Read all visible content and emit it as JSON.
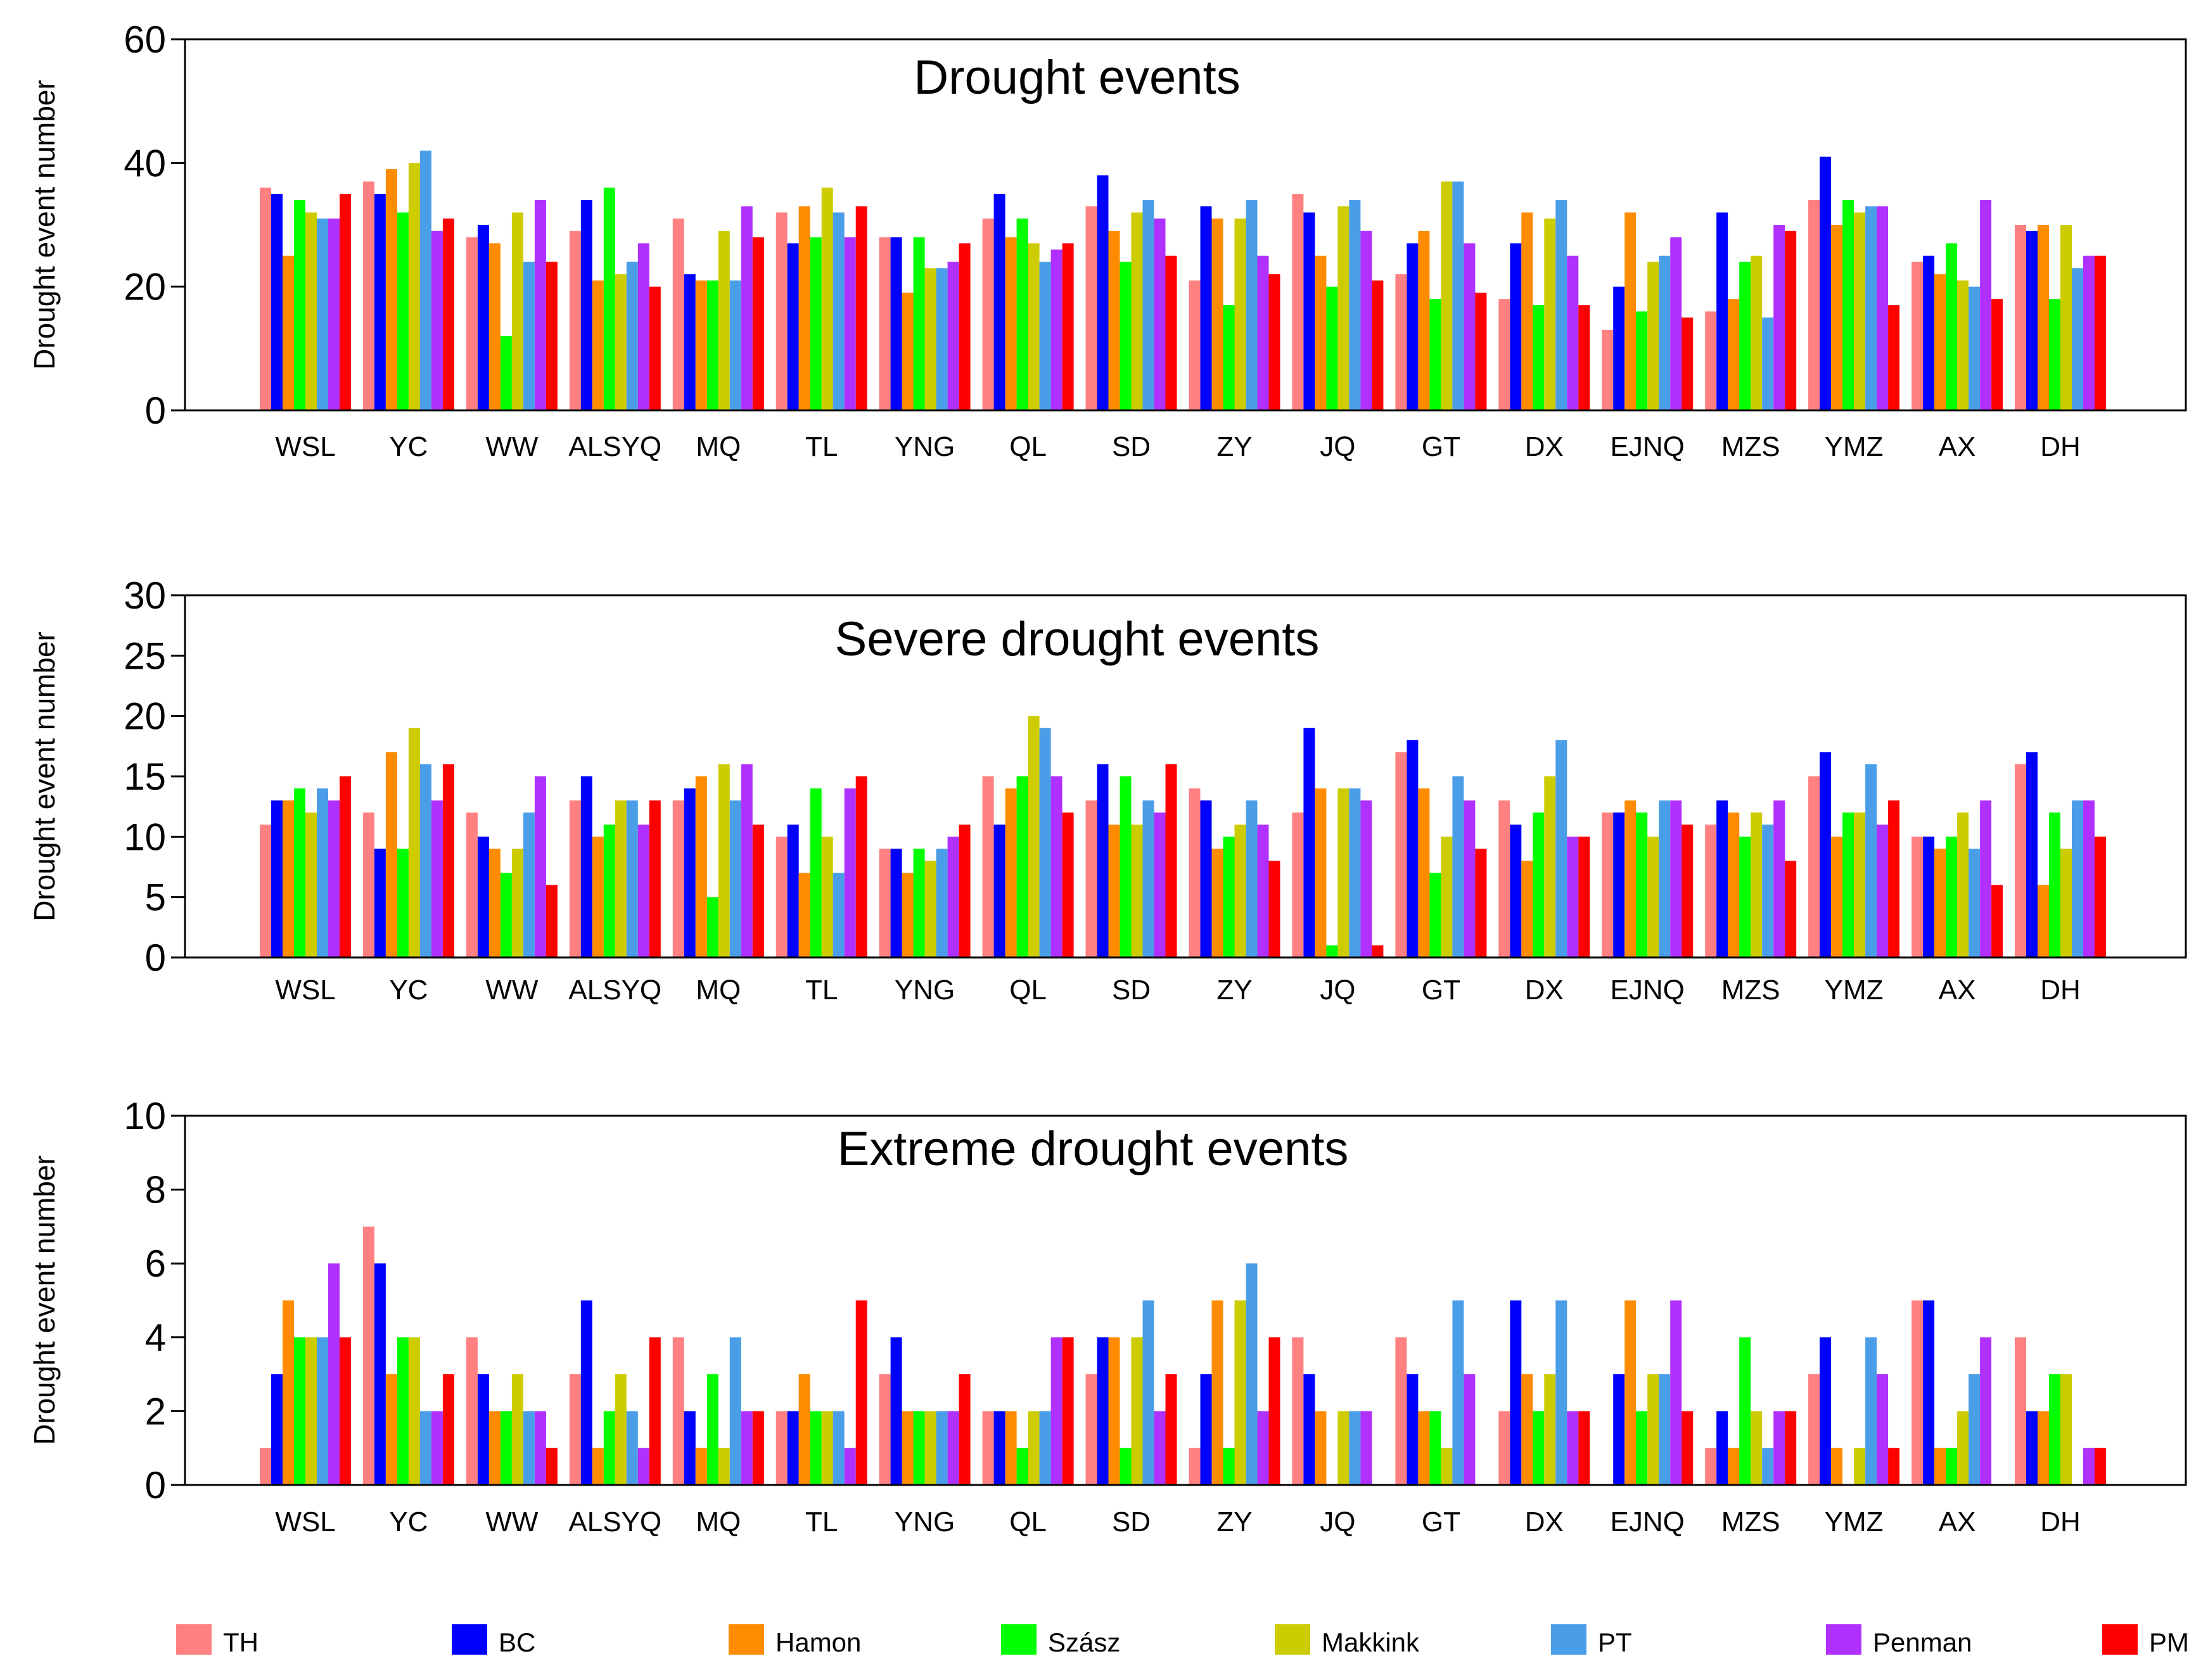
{
  "chart_data": [
    {
      "type": "bar",
      "title": "Drought events",
      "xlabel": "",
      "ylabel": "Drought event number",
      "ylim": [
        0,
        60
      ],
      "yticks": [
        0,
        20,
        40,
        60
      ],
      "categories": [
        "WSL",
        "YC",
        "WW",
        "ALSYQ",
        "MQ",
        "TL",
        "YNG",
        "QL",
        "SD",
        "ZY",
        "JQ",
        "GT",
        "DX",
        "EJNQ",
        "MZS",
        "YMZ",
        "AX",
        "DH"
      ],
      "series": [
        {
          "name": "TH",
          "values": [
            36,
            37,
            28,
            29,
            31,
            32,
            28,
            31,
            33,
            21,
            35,
            22,
            18,
            13,
            16,
            34,
            24,
            30
          ]
        },
        {
          "name": "BC",
          "values": [
            35,
            35,
            30,
            34,
            22,
            27,
            28,
            35,
            38,
            33,
            32,
            27,
            27,
            20,
            32,
            41,
            25,
            29
          ]
        },
        {
          "name": "Hamon",
          "values": [
            25,
            39,
            27,
            21,
            21,
            33,
            19,
            28,
            29,
            31,
            25,
            29,
            32,
            32,
            18,
            30,
            22,
            30
          ]
        },
        {
          "name": "Szász",
          "values": [
            34,
            32,
            12,
            36,
            21,
            28,
            28,
            31,
            24,
            17,
            20,
            18,
            17,
            16,
            24,
            34,
            27,
            18
          ]
        },
        {
          "name": "Makkink",
          "values": [
            32,
            40,
            32,
            22,
            29,
            36,
            23,
            27,
            32,
            31,
            33,
            37,
            31,
            24,
            25,
            32,
            21,
            30
          ]
        },
        {
          "name": "PT",
          "values": [
            31,
            42,
            24,
            24,
            21,
            32,
            23,
            24,
            34,
            34,
            34,
            37,
            34,
            25,
            15,
            33,
            20,
            23
          ]
        },
        {
          "name": "Penman",
          "values": [
            31,
            29,
            34,
            27,
            33,
            28,
            24,
            26,
            31,
            25,
            29,
            27,
            25,
            28,
            30,
            33,
            34,
            25
          ]
        },
        {
          "name": "PM",
          "values": [
            35,
            31,
            24,
            20,
            28,
            33,
            27,
            27,
            25,
            22,
            21,
            19,
            17,
            15,
            29,
            17,
            18,
            25
          ]
        }
      ]
    },
    {
      "type": "bar",
      "title": "Severe drought events",
      "xlabel": "",
      "ylabel": "Drought event number",
      "ylim": [
        0,
        30
      ],
      "yticks": [
        0,
        5,
        10,
        15,
        20,
        25,
        30
      ],
      "categories": [
        "WSL",
        "YC",
        "WW",
        "ALSYQ",
        "MQ",
        "TL",
        "YNG",
        "QL",
        "SD",
        "ZY",
        "JQ",
        "GT",
        "DX",
        "EJNQ",
        "MZS",
        "YMZ",
        "AX",
        "DH"
      ],
      "series": [
        {
          "name": "TH",
          "values": [
            11,
            12,
            12,
            13,
            13,
            10,
            9,
            15,
            13,
            14,
            12,
            17,
            13,
            12,
            11,
            15,
            10,
            16
          ]
        },
        {
          "name": "BC",
          "values": [
            13,
            9,
            10,
            15,
            14,
            11,
            9,
            11,
            16,
            13,
            19,
            18,
            11,
            12,
            13,
            17,
            10,
            17
          ]
        },
        {
          "name": "Hamon",
          "values": [
            13,
            17,
            9,
            10,
            15,
            7,
            7,
            14,
            11,
            9,
            14,
            14,
            8,
            13,
            12,
            10,
            9,
            6
          ]
        },
        {
          "name": "Szász",
          "values": [
            14,
            9,
            7,
            11,
            5,
            14,
            9,
            15,
            15,
            10,
            1,
            7,
            12,
            12,
            10,
            12,
            10,
            12
          ]
        },
        {
          "name": "Makkink",
          "values": [
            12,
            19,
            9,
            13,
            16,
            10,
            8,
            20,
            11,
            11,
            14,
            10,
            15,
            10,
            12,
            12,
            12,
            9
          ]
        },
        {
          "name": "PT",
          "values": [
            14,
            16,
            12,
            13,
            13,
            7,
            9,
            19,
            13,
            13,
            14,
            15,
            18,
            13,
            11,
            16,
            9,
            13
          ]
        },
        {
          "name": "Penman",
          "values": [
            13,
            13,
            15,
            11,
            16,
            14,
            10,
            15,
            12,
            11,
            13,
            13,
            10,
            13,
            13,
            11,
            13,
            13
          ]
        },
        {
          "name": "PM",
          "values": [
            15,
            16,
            6,
            13,
            11,
            15,
            11,
            12,
            16,
            8,
            1,
            9,
            10,
            11,
            8,
            13,
            6,
            10
          ]
        }
      ]
    },
    {
      "type": "bar",
      "title": "Extreme drought events",
      "xlabel": "",
      "ylabel": "Drought event number",
      "ylim": [
        0,
        10
      ],
      "yticks": [
        0,
        2,
        4,
        6,
        8,
        10
      ],
      "categories": [
        "WSL",
        "YC",
        "WW",
        "ALSYQ",
        "MQ",
        "TL",
        "YNG",
        "QL",
        "SD",
        "ZY",
        "JQ",
        "GT",
        "DX",
        "EJNQ",
        "MZS",
        "YMZ",
        "AX",
        "DH"
      ],
      "series": [
        {
          "name": "TH",
          "values": [
            1,
            7,
            4,
            3,
            4,
            2,
            3,
            2,
            3,
            1,
            4,
            4,
            2,
            0,
            1,
            3,
            5,
            4
          ]
        },
        {
          "name": "BC",
          "values": [
            3,
            6,
            3,
            5,
            2,
            2,
            4,
            2,
            4,
            3,
            3,
            3,
            5,
            3,
            2,
            4,
            5,
            2
          ]
        },
        {
          "name": "Hamon",
          "values": [
            5,
            3,
            2,
            1,
            1,
            3,
            2,
            2,
            4,
            5,
            2,
            2,
            3,
            5,
            1,
            1,
            1,
            2
          ]
        },
        {
          "name": "Szász",
          "values": [
            4,
            4,
            2,
            2,
            3,
            2,
            2,
            1,
            1,
            1,
            0,
            2,
            2,
            2,
            4,
            0,
            1,
            3
          ]
        },
        {
          "name": "Makkink",
          "values": [
            4,
            4,
            3,
            3,
            1,
            2,
            2,
            2,
            4,
            5,
            2,
            1,
            3,
            3,
            2,
            1,
            2,
            3
          ]
        },
        {
          "name": "PT",
          "values": [
            4,
            2,
            2,
            2,
            4,
            2,
            2,
            2,
            5,
            6,
            2,
            5,
            5,
            3,
            1,
            4,
            3,
            0
          ]
        },
        {
          "name": "Penman",
          "values": [
            6,
            2,
            2,
            1,
            2,
            1,
            2,
            4,
            2,
            2,
            2,
            3,
            2,
            5,
            2,
            3,
            4,
            1
          ]
        },
        {
          "name": "PM",
          "values": [
            4,
            3,
            1,
            4,
            2,
            5,
            3,
            4,
            3,
            4,
            0,
            0,
            2,
            2,
            2,
            1,
            0,
            1
          ]
        }
      ]
    }
  ],
  "legend": {
    "placement": "bottom",
    "entries": [
      {
        "label": "TH",
        "color": "#ff8080"
      },
      {
        "label": "BC",
        "color": "#0000ff"
      },
      {
        "label": "Hamon",
        "color": "#ff8c00"
      },
      {
        "label": "Szász",
        "color": "#00ff00"
      },
      {
        "label": "Makkink",
        "color": "#cccc00"
      },
      {
        "label": "PT",
        "color": "#4a9ee8"
      },
      {
        "label": "Penman",
        "color": "#b030ff"
      },
      {
        "label": "PM",
        "color": "#ff0000"
      }
    ]
  }
}
